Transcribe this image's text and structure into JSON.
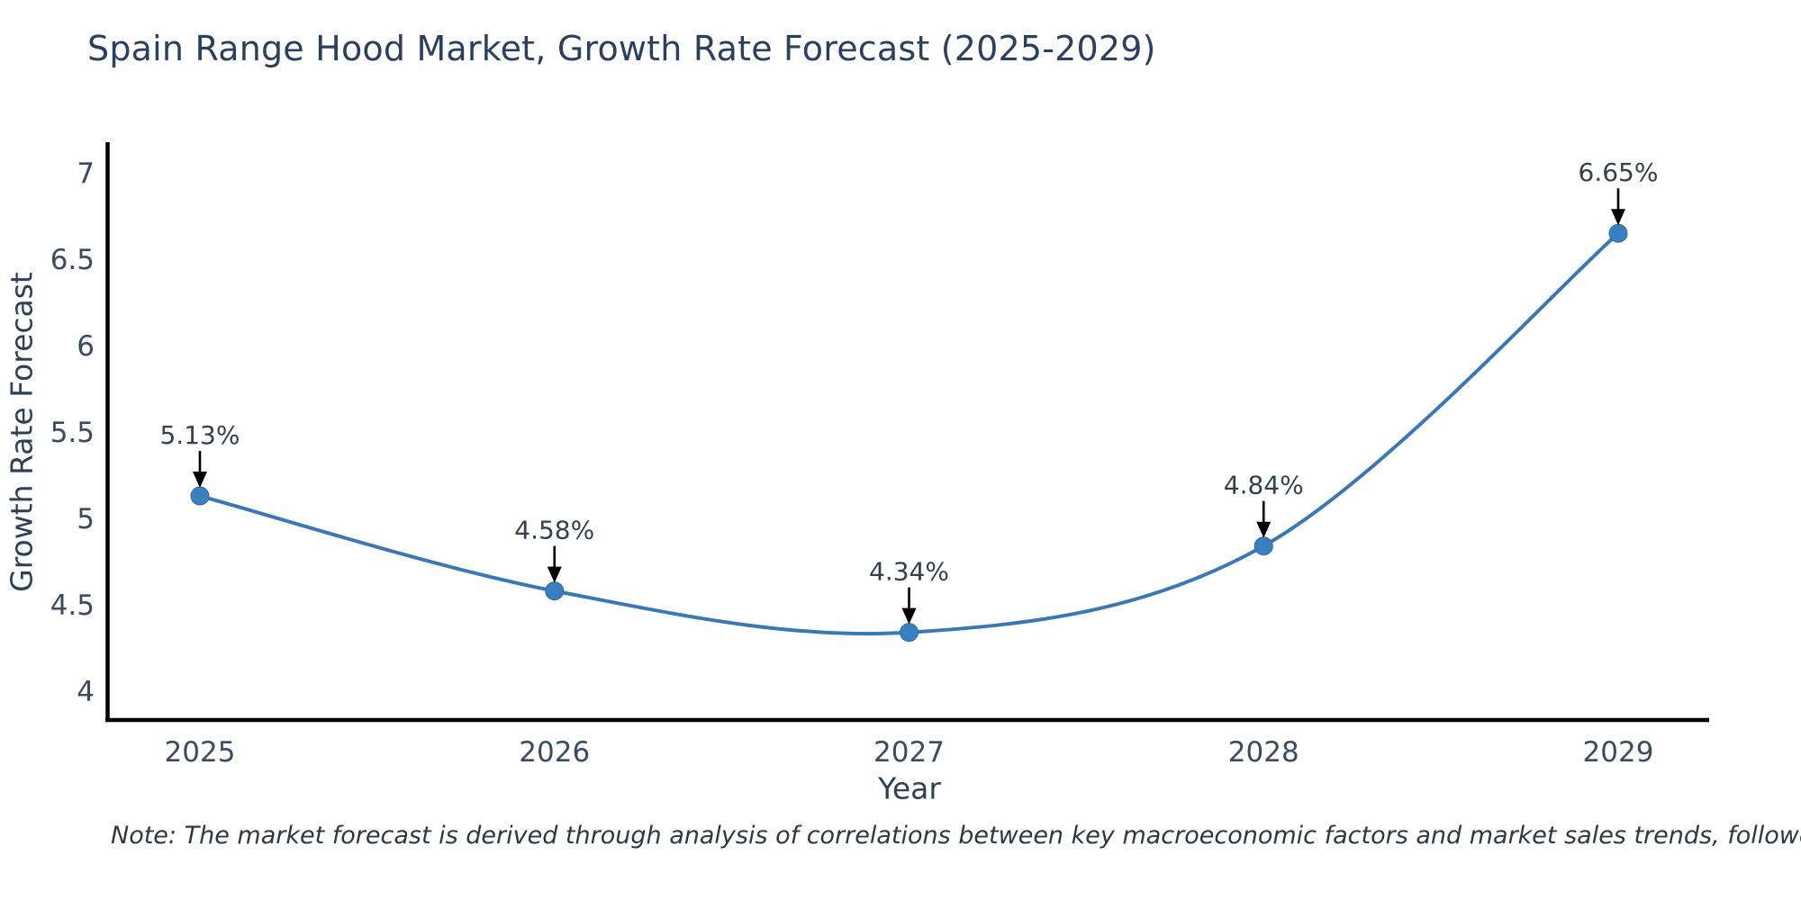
{
  "title": "Spain Range Hood Market, Growth Rate Forecast (2025-2029)",
  "footnote": "Note: The market forecast is derived through analysis of correlations between key macroeconomic factors and market sales trends, followed by predictive modeling to project future sales",
  "chart_data": {
    "type": "line",
    "title": "Spain Range Hood Market, Growth Rate Forecast (2025-2029)",
    "xlabel": "Year",
    "ylabel": "Growth Rate Forecast",
    "categories": [
      "2025",
      "2026",
      "2027",
      "2028",
      "2029"
    ],
    "series": [
      {
        "name": "Growth Rate Forecast",
        "values": [
          5.13,
          4.58,
          4.34,
          4.84,
          6.65
        ],
        "point_labels": [
          "5.13%",
          "4.58%",
          "4.34%",
          "4.84%",
          "6.65%"
        ]
      }
    ],
    "yticks": [
      4,
      4.5,
      5,
      5.5,
      6,
      6.5,
      7
    ],
    "ylim": [
      3.833,
      7.167
    ],
    "grid": false,
    "legend_position": "none",
    "smooth_line": true,
    "annotation_arrows": "down-to-point",
    "colors": {
      "line": "#3a78b5",
      "marker": "#3a7fc1",
      "marker_edge": "#2f6ba3",
      "axis_line": "#000000",
      "tick_label": "#3b4b63",
      "annotation_text": "#33404f",
      "arrow": "#000000",
      "title_text": "#2b3f5e",
      "background": "#ffffff"
    }
  }
}
